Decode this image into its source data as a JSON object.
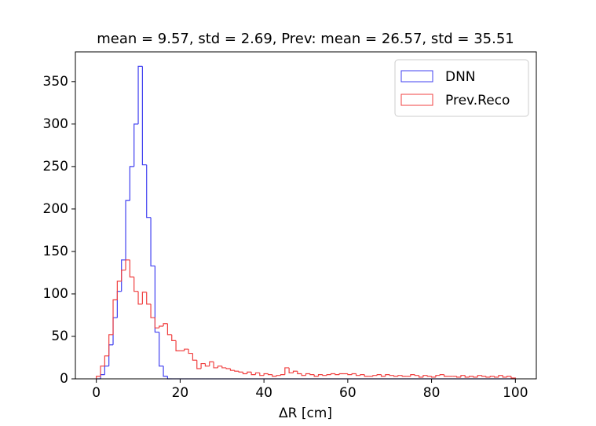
{
  "chart_data": {
    "type": "histogram",
    "title": "mean = 9.57, std = 2.69, Prev: mean = 26.57, std = 35.51",
    "xlabel": "ΔR [cm]",
    "bins": [
      0,
      1,
      2,
      3,
      4,
      5,
      6,
      7,
      8,
      9,
      10,
      11,
      12,
      13,
      14,
      15,
      16,
      17,
      18,
      19,
      20,
      21,
      22,
      23,
      24,
      25,
      26,
      27,
      28,
      29,
      30,
      31,
      32,
      33,
      34,
      35,
      36,
      37,
      38,
      39,
      40,
      41,
      42,
      43,
      44,
      45,
      46,
      47,
      48,
      49,
      50,
      51,
      52,
      53,
      54,
      55,
      56,
      57,
      58,
      59,
      60,
      61,
      62,
      63,
      64,
      65,
      66,
      67,
      68,
      69,
      70,
      71,
      72,
      73,
      74,
      75,
      76,
      77,
      78,
      79,
      80,
      81,
      82,
      83,
      84,
      85,
      86,
      87,
      88,
      89,
      90,
      91,
      92,
      93,
      94,
      95,
      96,
      97,
      98,
      99,
      100
    ],
    "series": [
      {
        "name": "DNN",
        "color": "#4040f0",
        "values": [
          0,
          5,
          15,
          40,
          72,
          103,
          140,
          210,
          250,
          300,
          368,
          252,
          190,
          133,
          55,
          15,
          3,
          0,
          0,
          0,
          0,
          0,
          0,
          0,
          0,
          0,
          0,
          0,
          0,
          0,
          0,
          0,
          0,
          0,
          0,
          0,
          0,
          0,
          0,
          0,
          0,
          0,
          0,
          0,
          0,
          0,
          0,
          0,
          0,
          0,
          0,
          0,
          0,
          0,
          0,
          0,
          0,
          0,
          0,
          0,
          0,
          0,
          0,
          0,
          0,
          0,
          0,
          0,
          0,
          0,
          0,
          0,
          0,
          0,
          0,
          0,
          0,
          0,
          0,
          0,
          0,
          0,
          0,
          0,
          0,
          0,
          0,
          0,
          0,
          0,
          0,
          0,
          0,
          0,
          0,
          0,
          0,
          0,
          0,
          0
        ]
      },
      {
        "name": "Prev.Reco",
        "color": "#f04040",
        "values": [
          3,
          15,
          27,
          52,
          93,
          115,
          128,
          140,
          120,
          103,
          88,
          102,
          88,
          72,
          60,
          62,
          65,
          52,
          45,
          33,
          33,
          35,
          30,
          22,
          12,
          18,
          15,
          20,
          13,
          15,
          13,
          12,
          10,
          9,
          8,
          6,
          8,
          5,
          7,
          4,
          6,
          5,
          3,
          4,
          5,
          13,
          7,
          9,
          6,
          4,
          6,
          5,
          3,
          5,
          4,
          5,
          6,
          5,
          6,
          6,
          5,
          6,
          4,
          5,
          3,
          3,
          4,
          5,
          3,
          5,
          4,
          3,
          4,
          3,
          3,
          5,
          4,
          2,
          4,
          3,
          2,
          4,
          5,
          3,
          3,
          3,
          2,
          4,
          2,
          3,
          2,
          4,
          3,
          2,
          3,
          2,
          4,
          2,
          3,
          1
        ]
      }
    ],
    "xlim": [
      -5,
      105
    ],
    "ylim": [
      0,
      385
    ],
    "xticks": [
      0,
      20,
      40,
      60,
      80,
      100
    ],
    "yticks": [
      0,
      50,
      100,
      150,
      200,
      250,
      300,
      350
    ],
    "legend": "upper right"
  }
}
